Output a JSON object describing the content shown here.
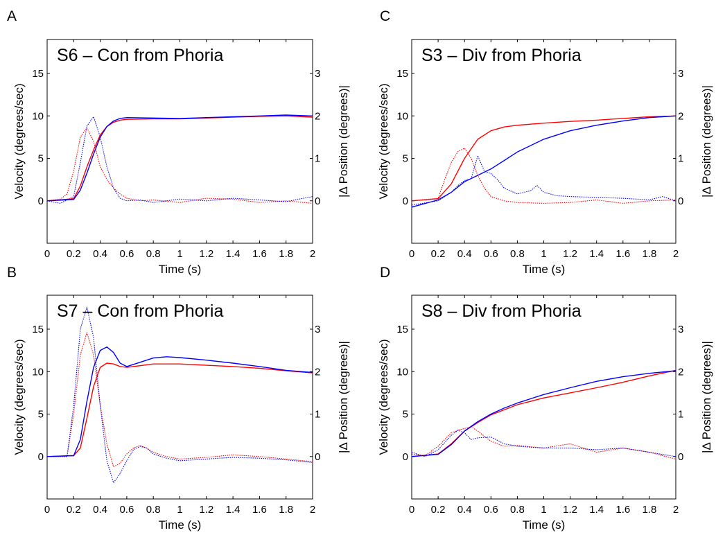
{
  "chart_data": [
    {
      "panel_letter": "A",
      "type": "line",
      "title": "S6 – Con from Phoria",
      "xlabel": "Time (s)",
      "ylabel": "Velocity (degrees/sec)",
      "ylabel_right": "|Δ Position (degrees)|",
      "xlim": [
        0,
        2
      ],
      "ylim": [
        -5,
        19
      ],
      "xticks": [
        "0",
        "0.2",
        "0.4",
        "0.6",
        "0.8",
        "1",
        "1.2",
        "1.4",
        "1.6",
        "1.8",
        "2"
      ],
      "yticks": [
        "0",
        "5",
        "10",
        "15"
      ],
      "yticks_right": [
        "0",
        "1",
        "2",
        "3"
      ],
      "series": [
        {
          "color": "#ff0000",
          "style": "dotted",
          "x": [
            0,
            0.1,
            0.15,
            0.2,
            0.25,
            0.3,
            0.35,
            0.4,
            0.45,
            0.5,
            0.55,
            0.6,
            0.7,
            0.8,
            1,
            1.2,
            1.4,
            1.6,
            1.8,
            2
          ],
          "y": [
            0,
            0.2,
            0.8,
            3.5,
            7.5,
            8.6,
            7,
            4,
            2.5,
            1.5,
            0.8,
            0.3,
            0,
            0.1,
            -0.2,
            0.3,
            0.2,
            -0.2,
            0,
            -0.3
          ]
        },
        {
          "color": "#0000ff",
          "style": "dotted",
          "x": [
            0,
            0.1,
            0.2,
            0.25,
            0.3,
            0.35,
            0.4,
            0.45,
            0.5,
            0.55,
            0.6,
            0.7,
            0.8,
            1,
            1.2,
            1.4,
            1.6,
            1.8,
            2
          ],
          "y": [
            0,
            -0.3,
            0.5,
            4.5,
            8.8,
            9.9,
            7.5,
            4,
            1.5,
            0.3,
            0,
            0.1,
            -0.2,
            0.2,
            0,
            0.3,
            0.1,
            -0.1,
            0.5
          ]
        },
        {
          "color": "#ff0000",
          "style": "solid",
          "x": [
            0,
            0.2,
            0.25,
            0.3,
            0.35,
            0.4,
            0.45,
            0.5,
            0.55,
            0.6,
            0.8,
            1,
            1.2,
            1.4,
            1.6,
            1.8,
            2
          ],
          "y": [
            0,
            0.05,
            0.35,
            0.8,
            1.2,
            1.55,
            1.75,
            1.85,
            1.9,
            1.92,
            1.93,
            1.93,
            1.95,
            1.97,
            1.99,
            2.0,
            1.97
          ]
        },
        {
          "color": "#0000ff",
          "style": "solid",
          "x": [
            0,
            0.2,
            0.25,
            0.3,
            0.35,
            0.4,
            0.45,
            0.5,
            0.55,
            0.6,
            0.8,
            1,
            1.2,
            1.4,
            1.6,
            1.8,
            2
          ],
          "y": [
            0,
            0.03,
            0.25,
            0.65,
            1.1,
            1.5,
            1.75,
            1.88,
            1.94,
            1.96,
            1.95,
            1.94,
            1.96,
            1.98,
            2.0,
            2.02,
            2.0
          ]
        }
      ]
    },
    {
      "panel_letter": "B",
      "type": "line",
      "title": "S7 – Con from Phoria",
      "xlabel": "Time (s)",
      "ylabel": "Velocity (degrees/sec)",
      "ylabel_right": "|Δ Position (degrees)|",
      "xlim": [
        0,
        2
      ],
      "ylim": [
        -5,
        19
      ],
      "xticks": [
        "0",
        "0.2",
        "0.4",
        "0.6",
        "0.8",
        "1",
        "1.2",
        "1.4",
        "1.6",
        "1.8",
        "2"
      ],
      "yticks": [
        "0",
        "5",
        "10",
        "15"
      ],
      "yticks_right": [
        "0",
        "1",
        "2",
        "3"
      ],
      "series": [
        {
          "color": "#ff0000",
          "style": "dotted",
          "x": [
            0,
            0.15,
            0.2,
            0.25,
            0.3,
            0.35,
            0.4,
            0.45,
            0.5,
            0.55,
            0.6,
            0.65,
            0.7,
            0.75,
            0.8,
            0.9,
            1,
            1.2,
            1.4,
            1.6,
            1.8,
            2
          ],
          "y": [
            0,
            0,
            5,
            12,
            14.6,
            12,
            6,
            1.5,
            -1.2,
            -0.8,
            0.3,
            1,
            1.3,
            1,
            0.5,
            0,
            -0.3,
            -0.1,
            0.2,
            0,
            -0.3,
            -0.6
          ]
        },
        {
          "color": "#0000ff",
          "style": "dotted",
          "x": [
            0,
            0.15,
            0.2,
            0.25,
            0.3,
            0.35,
            0.4,
            0.45,
            0.5,
            0.55,
            0.6,
            0.65,
            0.7,
            0.75,
            0.8,
            0.9,
            1,
            1.2,
            1.4,
            1.6,
            1.8,
            2
          ],
          "y": [
            0,
            0,
            6,
            15,
            17.6,
            14,
            6,
            -0.5,
            -3.1,
            -2,
            -0.5,
            0.8,
            1.2,
            1,
            0.3,
            -0.2,
            -0.5,
            -0.3,
            -0.1,
            -0.2,
            -0.4,
            -0.7
          ]
        },
        {
          "color": "#ff0000",
          "style": "solid",
          "x": [
            0,
            0.2,
            0.25,
            0.3,
            0.35,
            0.4,
            0.45,
            0.5,
            0.55,
            0.6,
            0.7,
            0.8,
            1,
            1.2,
            1.4,
            1.6,
            1.8,
            2
          ],
          "y": [
            0,
            0.02,
            0.2,
            0.9,
            1.65,
            2.1,
            2.2,
            2.18,
            2.12,
            2.1,
            2.14,
            2.18,
            2.18,
            2.15,
            2.12,
            2.08,
            2.02,
            1.97
          ]
        },
        {
          "color": "#0000ff",
          "style": "solid",
          "x": [
            0,
            0.2,
            0.25,
            0.3,
            0.35,
            0.4,
            0.45,
            0.5,
            0.55,
            0.6,
            0.7,
            0.8,
            0.9,
            1,
            1.2,
            1.4,
            1.6,
            1.8,
            2
          ],
          "y": [
            0,
            0.02,
            0.4,
            1.3,
            2.1,
            2.5,
            2.58,
            2.45,
            2.2,
            2.12,
            2.22,
            2.32,
            2.35,
            2.33,
            2.27,
            2.2,
            2.12,
            2.03,
            1.98
          ]
        }
      ]
    },
    {
      "panel_letter": "C",
      "type": "line",
      "title": "S3 – Div from Phoria",
      "xlabel": "Time (s)",
      "ylabel": "Velocity (degrees/sec)",
      "ylabel_right": "|Δ Position (degrees)|",
      "xlim": [
        0,
        2
      ],
      "ylim": [
        -5,
        19
      ],
      "xticks": [
        "0",
        "0.2",
        "0.4",
        "0.6",
        "0.8",
        "1",
        "1.2",
        "1.4",
        "1.6",
        "1.8",
        "2"
      ],
      "yticks": [
        "0",
        "5",
        "10",
        "15"
      ],
      "yticks_right": [
        "0",
        "1",
        "2",
        "3"
      ],
      "series": [
        {
          "color": "#ff0000",
          "style": "dotted",
          "x": [
            0,
            0.2,
            0.25,
            0.3,
            0.35,
            0.4,
            0.45,
            0.5,
            0.55,
            0.6,
            0.7,
            0.8,
            1,
            1.2,
            1.4,
            1.6,
            1.8,
            2
          ],
          "y": [
            0,
            0.3,
            2.5,
            4.5,
            5.8,
            6.2,
            5,
            3,
            1.5,
            0.5,
            0,
            -0.2,
            -0.3,
            -0.2,
            0.1,
            -0.3,
            0,
            0.1
          ]
        },
        {
          "color": "#0000ff",
          "style": "dotted",
          "x": [
            0,
            0.2,
            0.3,
            0.35,
            0.4,
            0.45,
            0.5,
            0.55,
            0.6,
            0.65,
            0.7,
            0.8,
            0.9,
            0.95,
            1,
            1.1,
            1.2,
            1.4,
            1.6,
            1.8,
            1.9,
            2
          ],
          "y": [
            -0.5,
            0,
            1,
            1.8,
            2.4,
            2.6,
            5.3,
            3.5,
            3.2,
            2.5,
            1.5,
            0.8,
            1.2,
            1.8,
            1,
            0.6,
            0.5,
            0.4,
            0.3,
            0.1,
            0.5,
            0
          ]
        },
        {
          "color": "#ff0000",
          "style": "solid",
          "x": [
            0,
            0.2,
            0.3,
            0.4,
            0.5,
            0.6,
            0.7,
            0.8,
            1,
            1.2,
            1.4,
            1.6,
            1.8,
            2
          ],
          "y": [
            0,
            0.05,
            0.4,
            1.0,
            1.45,
            1.65,
            1.74,
            1.78,
            1.83,
            1.87,
            1.9,
            1.94,
            1.98,
            2.0
          ]
        },
        {
          "color": "#0000ff",
          "style": "solid",
          "x": [
            0,
            0.2,
            0.3,
            0.4,
            0.5,
            0.6,
            0.7,
            0.8,
            1,
            1.2,
            1.4,
            1.6,
            1.8,
            2
          ],
          "y": [
            -0.15,
            0.02,
            0.2,
            0.45,
            0.6,
            0.75,
            0.95,
            1.15,
            1.45,
            1.65,
            1.78,
            1.88,
            1.96,
            2.0
          ]
        }
      ]
    },
    {
      "panel_letter": "D",
      "type": "line",
      "title": "S8 – Div from Phoria",
      "xlabel": "Time (s)",
      "ylabel": "Velocity (degrees/sec)",
      "ylabel_right": "|Δ Position (degrees)|",
      "xlim": [
        0,
        2
      ],
      "ylim": [
        -5,
        19
      ],
      "xticks": [
        "0",
        "0.2",
        "0.4",
        "0.6",
        "0.8",
        "1",
        "1.2",
        "1.4",
        "1.6",
        "1.8",
        "2"
      ],
      "yticks": [
        "0",
        "5",
        "10",
        "15"
      ],
      "yticks_right": [
        "0",
        "1",
        "2",
        "3"
      ],
      "series": [
        {
          "color": "#ff0000",
          "style": "dotted",
          "x": [
            0,
            0.1,
            0.2,
            0.3,
            0.35,
            0.4,
            0.45,
            0.5,
            0.6,
            0.7,
            0.8,
            1,
            1.2,
            1.4,
            1.6,
            1.8,
            2
          ],
          "y": [
            0.3,
            0.1,
            1.2,
            2.8,
            3.1,
            3.3,
            3.5,
            3,
            1.8,
            1.2,
            1.3,
            1,
            1.5,
            0.5,
            1,
            0.5,
            -0.3
          ]
        },
        {
          "color": "#0000ff",
          "style": "dotted",
          "x": [
            0,
            0.1,
            0.2,
            0.3,
            0.35,
            0.4,
            0.45,
            0.5,
            0.6,
            0.7,
            0.8,
            1,
            1.2,
            1.4,
            1.6,
            1.8,
            2
          ],
          "y": [
            0.5,
            0,
            0.8,
            2.5,
            3.1,
            2.8,
            2,
            2.2,
            2.3,
            1.5,
            1.2,
            1,
            1,
            0.8,
            1,
            0.5,
            0
          ]
        },
        {
          "color": "#ff0000",
          "style": "solid",
          "x": [
            0,
            0.2,
            0.3,
            0.4,
            0.5,
            0.6,
            0.7,
            0.8,
            1,
            1.2,
            1.4,
            1.6,
            1.8,
            2
          ],
          "y": [
            0,
            0.06,
            0.3,
            0.6,
            0.8,
            0.98,
            1.1,
            1.22,
            1.38,
            1.5,
            1.62,
            1.75,
            1.9,
            2.03
          ]
        },
        {
          "color": "#0000ff",
          "style": "solid",
          "x": [
            0,
            0.2,
            0.3,
            0.4,
            0.5,
            0.6,
            0.7,
            0.8,
            1,
            1.2,
            1.4,
            1.6,
            1.8,
            2
          ],
          "y": [
            0,
            0.05,
            0.28,
            0.6,
            0.82,
            1.0,
            1.14,
            1.26,
            1.46,
            1.62,
            1.77,
            1.88,
            1.96,
            2.02
          ]
        }
      ]
    }
  ]
}
